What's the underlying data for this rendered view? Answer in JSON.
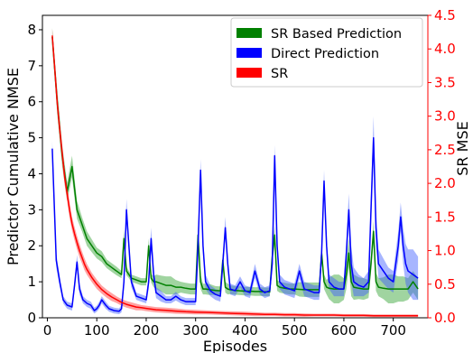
{
  "chart_data": {
    "type": "line",
    "xlabel": "Episodes",
    "ylabel_left": "Predictor Cumulative NMSE",
    "ylabel_right": "SR MSE",
    "xlim": [
      -10,
      770
    ],
    "ylim_left": [
      0,
      8.4
    ],
    "ylim_right": [
      0,
      4.5
    ],
    "x_ticks": [
      0,
      100,
      200,
      300,
      400,
      500,
      600,
      700
    ],
    "y_ticks_left": [
      0,
      1,
      2,
      3,
      4,
      5,
      6,
      7,
      8
    ],
    "y_ticks_right": [
      0.0,
      0.5,
      1.0,
      1.5,
      2.0,
      2.5,
      3.0,
      3.5,
      4.0,
      4.5
    ],
    "x_tick_labels": [
      "0",
      "100",
      "200",
      "300",
      "400",
      "500",
      "600",
      "700"
    ],
    "y_tick_labels_left": [
      "0",
      "1",
      "2",
      "3",
      "4",
      "5",
      "6",
      "7",
      "8"
    ],
    "y_tick_labels_right": [
      "0.0",
      "0.5",
      "1.0",
      "1.5",
      "2.0",
      "2.5",
      "3.0",
      "3.5",
      "4.0",
      "4.5"
    ],
    "grid": false,
    "legend_position": "top-right",
    "series": [
      {
        "name": "SR Based Prediction",
        "axis": "left",
        "color": "#008000",
        "band_color": "#2ca02c",
        "x": [
          10,
          20,
          30,
          40,
          50,
          60,
          70,
          80,
          90,
          100,
          110,
          120,
          130,
          140,
          150,
          155,
          160,
          165,
          170,
          180,
          190,
          200,
          205,
          210,
          215,
          220,
          230,
          240,
          250,
          260,
          270,
          280,
          290,
          300,
          305,
          310,
          315,
          320,
          330,
          340,
          350,
          355,
          360,
          365,
          370,
          380,
          390,
          400,
          410,
          420,
          430,
          440,
          450,
          455,
          460,
          465,
          470,
          480,
          490,
          500,
          510,
          520,
          530,
          540,
          550,
          555,
          560,
          565,
          570,
          580,
          590,
          600,
          605,
          610,
          615,
          620,
          630,
          640,
          650,
          655,
          660,
          665,
          670,
          680,
          690,
          700,
          710,
          720,
          730,
          740,
          750
        ],
        "y": [
          7.8,
          6.0,
          4.5,
          3.5,
          4.2,
          3.0,
          2.6,
          2.2,
          2.0,
          1.8,
          1.7,
          1.5,
          1.4,
          1.3,
          1.2,
          2.2,
          1.3,
          1.2,
          1.1,
          1.05,
          1.0,
          1.0,
          2.0,
          1.1,
          1.0,
          1.0,
          0.95,
          0.9,
          0.9,
          0.85,
          0.85,
          0.82,
          0.8,
          0.8,
          2.3,
          1.0,
          0.8,
          0.8,
          0.78,
          0.76,
          0.75,
          1.6,
          0.85,
          0.8,
          0.78,
          0.76,
          0.75,
          0.74,
          0.74,
          0.73,
          0.73,
          0.72,
          0.72,
          1.7,
          2.3,
          0.9,
          0.85,
          0.82,
          0.8,
          0.8,
          0.79,
          0.78,
          0.78,
          0.78,
          0.78,
          1.8,
          1.0,
          0.85,
          0.82,
          0.8,
          0.8,
          0.8,
          1.2,
          1.8,
          1.0,
          0.85,
          0.82,
          0.8,
          0.8,
          1.5,
          2.4,
          1.0,
          0.85,
          0.82,
          0.8,
          0.8,
          0.8,
          0.8,
          0.8,
          1.0,
          0.8
        ],
        "band": [
          0.25,
          0.35,
          0.3,
          0.25,
          0.3,
          0.25,
          0.2,
          0.2,
          0.18,
          0.15,
          0.15,
          0.12,
          0.12,
          0.12,
          0.1,
          0.25,
          0.12,
          0.1,
          0.1,
          0.1,
          0.1,
          0.1,
          0.2,
          0.12,
          0.15,
          0.2,
          0.22,
          0.25,
          0.25,
          0.2,
          0.15,
          0.15,
          0.15,
          0.15,
          0.25,
          0.2,
          0.15,
          0.15,
          0.15,
          0.12,
          0.12,
          0.2,
          0.15,
          0.15,
          0.12,
          0.12,
          0.12,
          0.12,
          0.12,
          0.12,
          0.12,
          0.12,
          0.12,
          0.2,
          0.25,
          0.15,
          0.15,
          0.15,
          0.15,
          0.15,
          0.2,
          0.2,
          0.2,
          0.2,
          0.2,
          0.2,
          0.2,
          0.2,
          0.3,
          0.4,
          0.4,
          0.3,
          0.4,
          0.4,
          0.4,
          0.35,
          0.3,
          0.3,
          0.25,
          0.25,
          0.3,
          0.25,
          0.25,
          0.3,
          0.4,
          0.4,
          0.35,
          0.35,
          0.3,
          0.3,
          0.3
        ]
      },
      {
        "name": "Direct Prediction",
        "axis": "left",
        "color": "#0000ff",
        "band_color": "#3b5bff",
        "x": [
          10,
          18,
          25,
          32,
          40,
          50,
          55,
          60,
          65,
          72,
          80,
          88,
          95,
          100,
          105,
          110,
          118,
          125,
          135,
          145,
          150,
          155,
          160,
          165,
          170,
          180,
          190,
          200,
          205,
          210,
          215,
          220,
          230,
          240,
          250,
          260,
          270,
          280,
          290,
          300,
          305,
          310,
          315,
          320,
          330,
          340,
          350,
          355,
          360,
          365,
          370,
          380,
          390,
          400,
          410,
          420,
          430,
          440,
          450,
          455,
          460,
          465,
          470,
          480,
          490,
          500,
          510,
          520,
          530,
          540,
          550,
          555,
          560,
          565,
          570,
          580,
          590,
          600,
          605,
          610,
          615,
          620,
          630,
          640,
          650,
          655,
          660,
          665,
          670,
          680,
          690,
          700,
          710,
          715,
          720,
          725,
          730,
          740,
          750
        ],
        "y": [
          4.7,
          1.6,
          1.0,
          0.5,
          0.35,
          0.3,
          0.9,
          1.55,
          0.8,
          0.5,
          0.4,
          0.35,
          0.2,
          0.25,
          0.35,
          0.5,
          0.35,
          0.25,
          0.2,
          0.18,
          0.25,
          1.0,
          3.0,
          2.0,
          1.0,
          0.6,
          0.55,
          0.5,
          1.0,
          2.2,
          1.2,
          0.7,
          0.6,
          0.5,
          0.5,
          0.6,
          0.5,
          0.45,
          0.45,
          0.45,
          2.0,
          4.1,
          2.0,
          1.0,
          0.75,
          0.65,
          0.6,
          1.5,
          2.5,
          1.5,
          0.8,
          0.75,
          1.0,
          0.75,
          0.7,
          1.3,
          0.8,
          0.7,
          0.75,
          1.5,
          4.5,
          2.0,
          1.0,
          0.85,
          0.8,
          0.75,
          1.3,
          0.8,
          0.75,
          0.7,
          0.7,
          1.8,
          3.8,
          2.0,
          1.0,
          0.85,
          0.8,
          0.8,
          1.8,
          3.0,
          1.5,
          1.0,
          0.9,
          0.85,
          1.0,
          3.0,
          5.0,
          2.5,
          1.5,
          1.3,
          1.1,
          1.0,
          2.0,
          2.8,
          2.0,
          1.5,
          1.3,
          1.2,
          1.1
        ],
        "band": [
          0.2,
          0.2,
          0.15,
          0.1,
          0.1,
          0.1,
          0.15,
          0.2,
          0.15,
          0.1,
          0.1,
          0.1,
          0.08,
          0.08,
          0.1,
          0.1,
          0.1,
          0.08,
          0.08,
          0.08,
          0.1,
          0.2,
          0.3,
          0.2,
          0.15,
          0.1,
          0.1,
          0.1,
          0.2,
          0.3,
          0.2,
          0.15,
          0.15,
          0.1,
          0.1,
          0.12,
          0.1,
          0.1,
          0.1,
          0.1,
          0.2,
          0.3,
          0.25,
          0.2,
          0.15,
          0.15,
          0.15,
          0.2,
          0.3,
          0.2,
          0.15,
          0.15,
          0.15,
          0.15,
          0.15,
          0.2,
          0.15,
          0.15,
          0.15,
          0.2,
          0.3,
          0.25,
          0.2,
          0.2,
          0.2,
          0.2,
          0.2,
          0.2,
          0.2,
          0.2,
          0.2,
          0.2,
          0.3,
          0.25,
          0.2,
          0.25,
          0.2,
          0.2,
          0.3,
          0.45,
          0.5,
          0.4,
          0.3,
          0.25,
          0.3,
          0.45,
          0.6,
          0.5,
          0.4,
          0.35,
          0.3,
          0.3,
          0.4,
          0.4,
          0.5,
          0.55,
          0.6,
          0.7,
          0.6
        ]
      },
      {
        "name": "SR",
        "axis": "right",
        "color": "#ff0000",
        "band_color": "#ff3030",
        "x": [
          10,
          15,
          20,
          25,
          30,
          35,
          40,
          45,
          50,
          55,
          60,
          65,
          70,
          75,
          80,
          90,
          100,
          110,
          120,
          130,
          140,
          150,
          160,
          170,
          180,
          190,
          200,
          220,
          240,
          260,
          280,
          300,
          320,
          340,
          360,
          380,
          400,
          420,
          440,
          460,
          480,
          500,
          520,
          540,
          560,
          580,
          600,
          620,
          640,
          660,
          680,
          700,
          720,
          740,
          750
        ],
        "y": [
          4.2,
          3.7,
          3.2,
          2.8,
          2.45,
          2.1,
          1.85,
          1.6,
          1.4,
          1.25,
          1.12,
          1.0,
          0.9,
          0.8,
          0.72,
          0.6,
          0.5,
          0.42,
          0.36,
          0.31,
          0.27,
          0.23,
          0.2,
          0.18,
          0.16,
          0.15,
          0.14,
          0.12,
          0.11,
          0.1,
          0.09,
          0.085,
          0.08,
          0.075,
          0.07,
          0.065,
          0.06,
          0.055,
          0.05,
          0.05,
          0.045,
          0.045,
          0.04,
          0.04,
          0.04,
          0.04,
          0.035,
          0.035,
          0.035,
          0.03,
          0.03,
          0.03,
          0.03,
          0.03,
          0.03
        ],
        "band": [
          0.1,
          0.12,
          0.12,
          0.12,
          0.12,
          0.12,
          0.12,
          0.12,
          0.1,
          0.1,
          0.1,
          0.1,
          0.09,
          0.09,
          0.08,
          0.07,
          0.07,
          0.06,
          0.06,
          0.06,
          0.05,
          0.05,
          0.05,
          0.05,
          0.05,
          0.04,
          0.04,
          0.04,
          0.04,
          0.04,
          0.035,
          0.035,
          0.03,
          0.03,
          0.03,
          0.03,
          0.03,
          0.03,
          0.025,
          0.025,
          0.025,
          0.025,
          0.025,
          0.02,
          0.02,
          0.02,
          0.02,
          0.02,
          0.02,
          0.02,
          0.02,
          0.02,
          0.02,
          0.02,
          0.02
        ]
      }
    ]
  }
}
